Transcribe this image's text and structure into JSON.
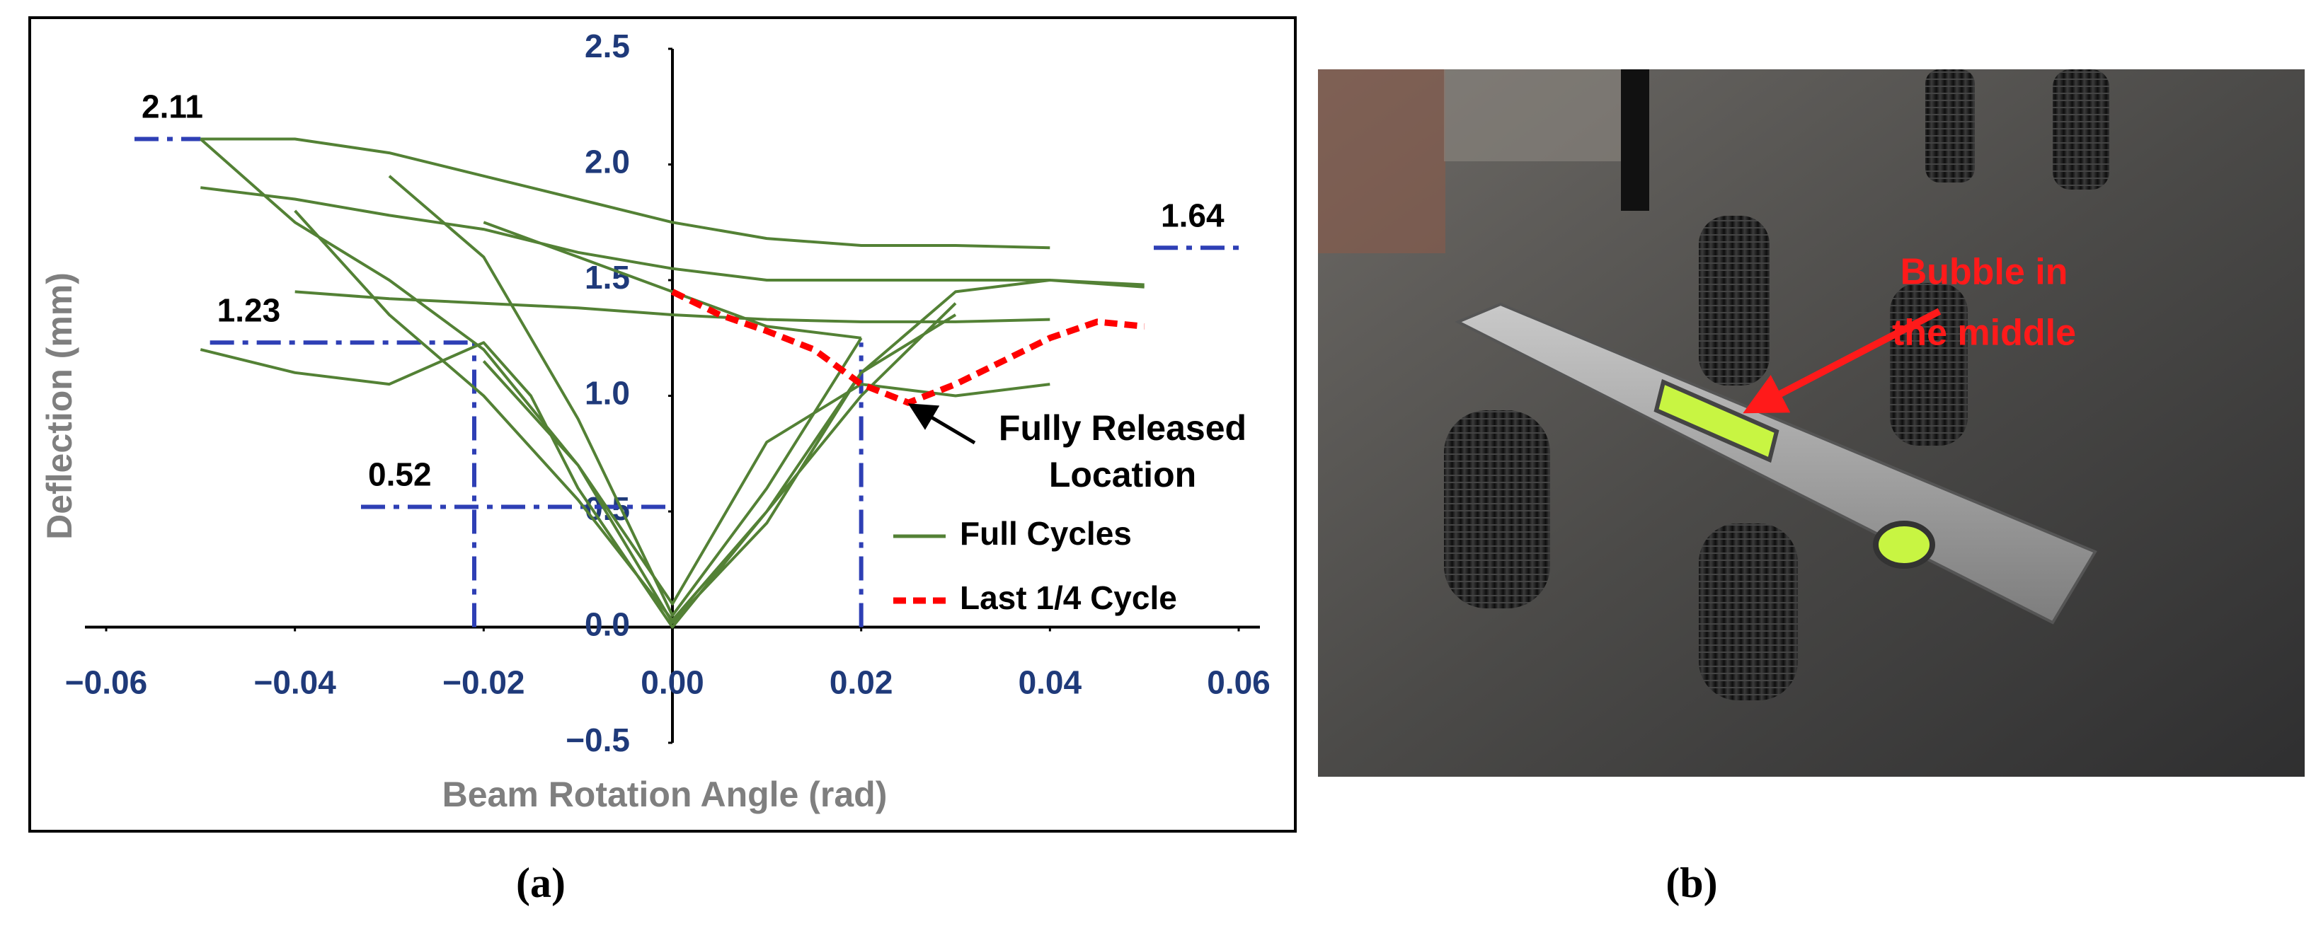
{
  "chart_data": {
    "type": "line",
    "xlabel": "Beam Rotation Angle (rad)",
    "ylabel": "Deflection (mm)",
    "xlim": [
      -0.06,
      0.06
    ],
    "xticks": [
      {
        "value": -0.06,
        "label": "−0.06"
      },
      {
        "value": -0.04,
        "label": "−0.04"
      },
      {
        "value": -0.02,
        "label": "−0.02"
      },
      {
        "value": 0,
        "label": "0.00"
      },
      0.02,
      0.04,
      0.06
    ],
    "ylim": [
      -0.5,
      2.5
    ],
    "yticks": [
      {
        "value": -0.5,
        "label": "−0.5"
      },
      {
        "value": 0,
        "label": "0.0"
      },
      0.5,
      {
        "value": 1,
        "label": "1.0"
      },
      1.5,
      {
        "value": 2,
        "label": "2.0"
      },
      2.5
    ],
    "series": [
      {
        "name": "Full Cycles",
        "color": "#538135",
        "dash": false,
        "x": [
          -0.05,
          -0.04,
          -0.03,
          -0.02,
          -0.01,
          0,
          0.01,
          0.02,
          0.03,
          0.04,
          null,
          -0.05,
          -0.04,
          -0.03,
          -0.02,
          -0.01,
          0,
          0.01,
          0.02,
          0.03,
          0.04,
          0.05,
          null,
          -0.05,
          -0.04,
          -0.03,
          -0.02,
          -0.01,
          0,
          0.01,
          0.02,
          0.03,
          0.04,
          0.05,
          null,
          -0.04,
          -0.03,
          -0.02,
          -0.01,
          0,
          0.01,
          0.02,
          0.03,
          0.04,
          null,
          -0.04,
          -0.03,
          -0.02,
          -0.01,
          0,
          0.01,
          0.02,
          0.03,
          null,
          -0.03,
          -0.02,
          -0.01,
          0,
          0.01,
          0.02,
          null,
          -0.05,
          -0.04,
          -0.03,
          -0.02,
          -0.015,
          -0.01,
          0,
          0.01,
          0.02,
          0.03,
          null,
          -0.02,
          -0.01,
          0,
          0.01,
          0.02,
          0.03,
          0.04,
          null,
          -0.02,
          -0.01,
          0,
          0.01,
          0.02
        ],
        "values": [
          2.11,
          2.11,
          2.05,
          1.95,
          1.85,
          1.75,
          1.68,
          1.65,
          1.65,
          1.64,
          null,
          2.11,
          1.75,
          1.5,
          1.2,
          0.7,
          0.02,
          0.45,
          1.1,
          1.45,
          1.5,
          1.47,
          null,
          1.9,
          1.85,
          1.78,
          1.72,
          1.62,
          1.55,
          1.5,
          1.5,
          1.5,
          1.5,
          1.48,
          null,
          1.45,
          1.42,
          1.4,
          1.38,
          1.35,
          1.33,
          1.32,
          1.32,
          1.33,
          null,
          1.8,
          1.35,
          1.0,
          0.55,
          0.03,
          0.5,
          1.0,
          1.4,
          null,
          1.95,
          1.6,
          0.9,
          0.05,
          0.6,
          1.25,
          null,
          1.2,
          1.1,
          1.05,
          1.23,
          1.0,
          0.6,
          0,
          0.5,
          1.1,
          1.35,
          null,
          1.15,
          0.7,
          0.1,
          0.8,
          1.05,
          1.0,
          1.05,
          null,
          1.75,
          1.6,
          1.45,
          1.3,
          1.25
        ]
      },
      {
        "name": "Last 1/4 Cycle",
        "color": "#ff0000",
        "dash": true,
        "x": [
          0,
          0.005,
          0.01,
          0.015,
          0.02,
          0.025,
          0.03,
          0.035,
          0.04,
          0.045,
          0.05
        ],
        "values": [
          1.45,
          1.35,
          1.28,
          1.2,
          1.05,
          0.97,
          1.05,
          1.15,
          1.25,
          1.32,
          1.3
        ]
      }
    ],
    "reference_color": "#2e3fb5",
    "reference_lines": [
      {
        "y": 2.11,
        "x": [
          -0.057,
          -0.05
        ]
      },
      {
        "y": 1.23,
        "x": [
          -0.049,
          -0.021
        ]
      },
      {
        "y": 0.52,
        "x": [
          -0.033,
          0
        ]
      },
      {
        "y": 1.64,
        "x": [
          0.051,
          0.06
        ]
      }
    ],
    "vertical_lines": [
      {
        "x": -0.021,
        "y": [
          0,
          1.23
        ]
      },
      {
        "x": 0.02,
        "y": [
          0,
          1.23
        ]
      }
    ],
    "annotation": {
      "lines": [
        "Fully Released",
        "Location"
      ],
      "x": 0.025,
      "y": 0.97
    }
  },
  "photo": {
    "annotation": [
      "Bubble in",
      "the middle"
    ]
  },
  "captions": [
    "(a)",
    "(b)"
  ]
}
